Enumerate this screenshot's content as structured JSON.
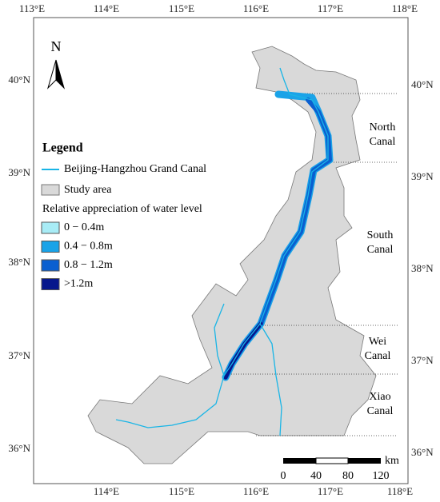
{
  "axes": {
    "top_labels": [
      "113°E",
      "114°E",
      "115°E",
      "116°E",
      "117°E",
      "118°E"
    ],
    "bottom_labels": [
      "114°E",
      "115°E",
      "116°E",
      "117°E",
      "118°E"
    ],
    "left_labels": [
      "40°N",
      "39°N",
      "38°N",
      "37°N",
      "36°N"
    ],
    "right_labels": [
      "40°N",
      "39°N",
      "38°N",
      "37°N",
      "36°N"
    ]
  },
  "north_arrow": {
    "label": "N"
  },
  "legend": {
    "title": "Legend",
    "canal": {
      "label": "Beijing-Hangzhou Grand Canal",
      "color": "#19b5e6"
    },
    "study_area": {
      "label": "Study area",
      "color": "#d9d9d9"
    },
    "subtitle": "Relative appreciation of water level",
    "classes": [
      {
        "label": "0 − 0.4m",
        "color": "#a8ecf6"
      },
      {
        "label": "0.4 − 0.8m",
        "color": "#1aa3e8"
      },
      {
        "label": "0.8 − 1.2m",
        "color": "#0a5fd0"
      },
      {
        "label": ">1.2m",
        "color": "#06178c"
      }
    ]
  },
  "regions": [
    {
      "lines": [
        "North",
        "Canal"
      ]
    },
    {
      "lines": [
        "South",
        "Canal"
      ]
    },
    {
      "lines": [
        "Wei",
        "Canal"
      ]
    },
    {
      "lines": [
        "Xiao",
        "Canal"
      ]
    }
  ],
  "scale_bar": {
    "labels": [
      "0",
      "40",
      "80",
      "120"
    ],
    "unit": "km"
  }
}
